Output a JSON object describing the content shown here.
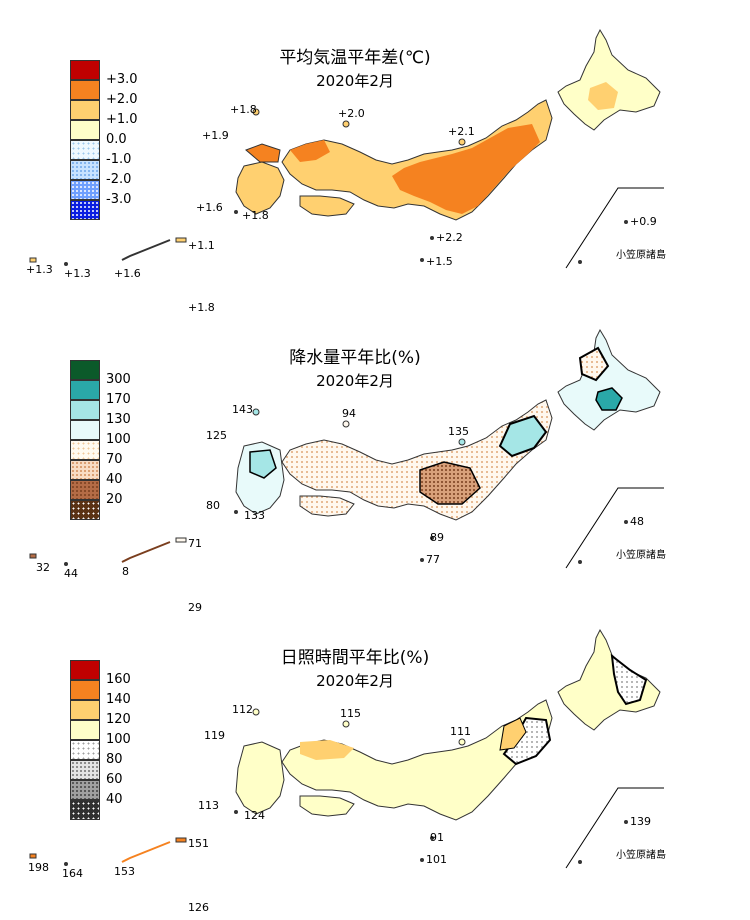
{
  "panels": [
    {
      "title": "平均気温平年差(℃)",
      "subtitle": "2020年2月",
      "legend": [
        {
          "label": "+3.0",
          "color": "#c00000"
        },
        {
          "label": "+2.0",
          "color": "#f58220"
        },
        {
          "label": "+1.0",
          "color": "#ffd070"
        },
        {
          "label": "0.0",
          "color": "#ffffc8"
        },
        {
          "label": "-1.0",
          "color": "#e8f6ff"
        },
        {
          "label": "-2.0",
          "color": "#b8dcff"
        },
        {
          "label": "-3.0",
          "color": "#7fb0ff"
        },
        {
          "label": "",
          "color": "#0a1ee0"
        }
      ],
      "values": {
        "v1": "+1.8",
        "v2": "+2.0",
        "v3": "+1.9",
        "v4": "+2.1",
        "v5": "+1.6",
        "v6": "+1.8",
        "v7": "+1.1",
        "v8": "+1.3",
        "v9": "+1.3",
        "v10": "+1.6",
        "v11": "+2.2",
        "v12": "+1.5",
        "v13": "+0.9",
        "v14": "+1.8"
      },
      "ogasawara_label": "小笠原諸島"
    },
    {
      "title": "降水量平年比(%)",
      "subtitle": "2020年2月",
      "legend": [
        {
          "label": "300",
          "color": "#0b5a2a"
        },
        {
          "label": "170",
          "color": "#2aa8a8"
        },
        {
          "label": "130",
          "color": "#a5e6e6"
        },
        {
          "label": "100",
          "color": "#e8fafa"
        },
        {
          "label": "70",
          "color": "#ffffff"
        },
        {
          "label": "40",
          "color": "#f4c8a8"
        },
        {
          "label": "20",
          "color": "#b46c46"
        },
        {
          "label": "",
          "color": "#5a3214"
        }
      ],
      "values": {
        "v1": "143",
        "v2": "94",
        "v3": "125",
        "v4": "135",
        "v5": "80",
        "v6": "133",
        "v7": "89",
        "v8": "71",
        "v9": "32",
        "v10": "44",
        "v11": "8",
        "v12": "77",
        "v13": "48",
        "v14": "29"
      },
      "ogasawara_label": "小笠原諸島"
    },
    {
      "title": "日照時間平年比(%)",
      "subtitle": "2020年2月",
      "legend": [
        {
          "label": "160",
          "color": "#c00000"
        },
        {
          "label": "140",
          "color": "#f58220"
        },
        {
          "label": "120",
          "color": "#ffd070"
        },
        {
          "label": "100",
          "color": "#ffffc8"
        },
        {
          "label": "80",
          "color": "#ffffff"
        },
        {
          "label": "60",
          "color": "#d0d0d0"
        },
        {
          "label": "40",
          "color": "#909090"
        },
        {
          "label": "",
          "color": "#303030"
        }
      ],
      "values": {
        "v1": "112",
        "v2": "115",
        "v3": "119",
        "v4": "111",
        "v5": "113",
        "v6": "124",
        "v7": "91",
        "v8": "151",
        "v9": "198",
        "v10": "164",
        "v11": "153",
        "v12": "101",
        "v13": "139",
        "v14": "126"
      },
      "ogasawara_label": "小笠原諸島"
    }
  ]
}
